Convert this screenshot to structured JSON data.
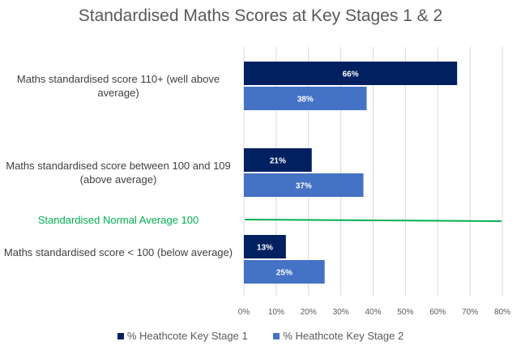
{
  "chart_data": {
    "type": "bar",
    "orientation": "horizontal",
    "title": "Standardised Maths Scores at Key Stages 1 & 2",
    "categories": [
      "Maths standardised score 110+ (well above average)",
      "Maths standardised score between 100 and 109 (above average)",
      "Maths standardised score < 100 (below average)"
    ],
    "series": [
      {
        "name": "% Heathcote Key Stage 1",
        "color": "#002060",
        "values": [
          66,
          21,
          13
        ],
        "labels": [
          "66%",
          "21%",
          "13%"
        ]
      },
      {
        "name": "% Heathcote Key Stage 2",
        "color": "#4472c4",
        "values": [
          38,
          37,
          25
        ],
        "labels": [
          "38%",
          "37%",
          "25%"
        ]
      }
    ],
    "xlim": [
      0,
      80
    ],
    "xticks": [
      "0%",
      "10%",
      "20%",
      "30%",
      "40%",
      "50%",
      "60%",
      "70%",
      "80%"
    ],
    "grid": true,
    "reference_line": {
      "label": "Standardised Normal Average 100",
      "color": "#00b050"
    },
    "legend": "bottom"
  }
}
